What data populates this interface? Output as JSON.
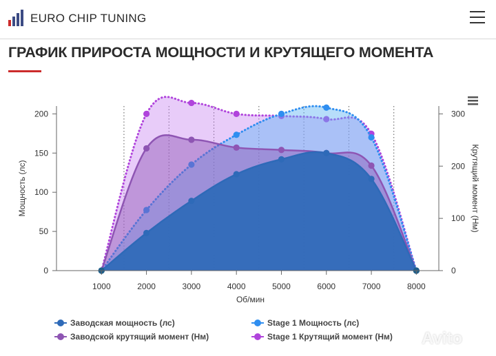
{
  "header": {
    "brand": "EURO CHIP TUNING",
    "logo_icon": "bar-chart-logo-icon",
    "menu_icon": "hamburger-menu-icon"
  },
  "page": {
    "title": "ГРАФИК ПРИРОСТА МОЩНОСТИ И КРУТЯЩЕГО МОМЕНТА",
    "accent_color": "#cc2b2b"
  },
  "watermark": "Avito",
  "chart_data": {
    "type": "area",
    "x": [
      1000,
      2000,
      3000,
      4000,
      5000,
      6000,
      7000,
      8000
    ],
    "xlabel": "Об/мин",
    "xlim": [
      0,
      8500
    ],
    "ylabel_left": "Мощность (лс)",
    "ylim_left": [
      0,
      210
    ],
    "yticks_left": [
      0,
      50,
      100,
      150,
      200
    ],
    "ylabel_right": "Крутящий момент (Нм)",
    "ylim_right": [
      0,
      315
    ],
    "yticks_right": [
      0,
      100,
      200,
      300
    ],
    "grid": "vertical dotted",
    "legend_position": "bottom",
    "export_menu_icon": "hamburger-menu-icon",
    "series": [
      {
        "name": "Заводская мощность (лс)",
        "axis": "left",
        "style": "solid",
        "color": "#2e6ab8",
        "values": [
          0,
          48,
          89,
          123,
          142,
          150,
          117,
          0
        ]
      },
      {
        "name": "Stage 1 Мощность (лс)",
        "axis": "right",
        "style": "dotted",
        "color": "#2f8ef0",
        "values": [
          0,
          116,
          203,
          260,
          300,
          312,
          255,
          0
        ]
      },
      {
        "name": "Заводской крутящий момент (Нм)",
        "axis": "left",
        "style": "solid",
        "color": "#8e55b3",
        "values": [
          0,
          156,
          167,
          157,
          154,
          150,
          134,
          0
        ]
      },
      {
        "name": "Stage 1 Крутящий момент (Нм)",
        "axis": "right",
        "style": "dotted",
        "color": "#b044dc",
        "values": [
          0,
          300,
          321,
          300,
          296,
          290,
          262,
          0
        ]
      }
    ]
  }
}
